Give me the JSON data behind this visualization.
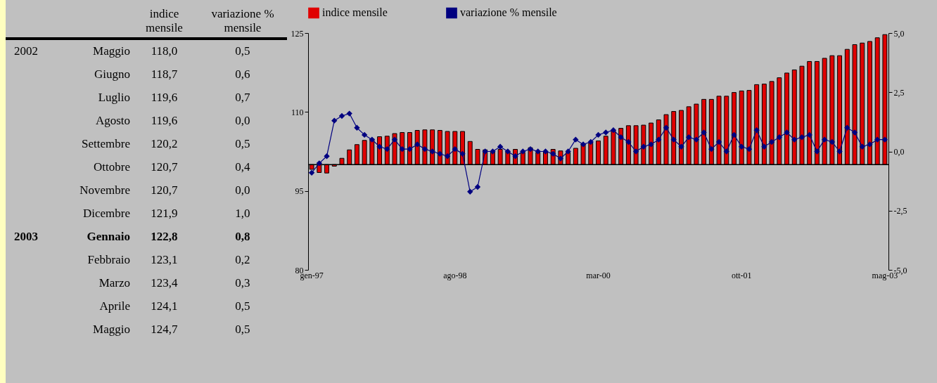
{
  "chart_data": [
    {
      "type": "other",
      "categories": [
        "Maggio",
        "Giugno",
        "Luglio",
        "Agosto",
        "Settembre",
        "Ottobre",
        "Novembre",
        "Dicembre",
        "Gennaio",
        "Febbraio",
        "Marzo",
        "Aprile",
        "Maggio"
      ],
      "series": [
        {
          "name": "indice mensile",
          "values": [
            118.0,
            118.7,
            119.6,
            119.6,
            120.2,
            120.7,
            120.7,
            121.9,
            122.8,
            123.1,
            123.4,
            124.1,
            124.7
          ],
          "value_labels": [
            "118,0",
            "118,7",
            "119,6",
            "119,6",
            "120,2",
            "120,7",
            "120,7",
            "121,9",
            "122,8",
            "123,1",
            "123,4",
            "124,1",
            "124,7"
          ]
        },
        {
          "name": "variazione % mensile",
          "values": [
            0.5,
            0.6,
            0.7,
            0.0,
            0.5,
            0.4,
            0.0,
            1.0,
            0.8,
            0.2,
            0.3,
            0.5,
            0.5
          ],
          "value_labels": [
            "0,5",
            "0,6",
            "0,7",
            "0,0",
            "0,5",
            "0,4",
            "0,0",
            "1,0",
            "0,8",
            "0,2",
            "0,3",
            "0,5",
            "0,5"
          ]
        }
      ],
      "annotations": [
        {
          "text": "2002",
          "y": "Maggio"
        },
        {
          "text": "2003",
          "y": "Gennaio"
        }
      ]
    },
    {
      "type": "bar",
      "categories": [
        "gen-97",
        null,
        null,
        null,
        null,
        null,
        null,
        null,
        null,
        null,
        null,
        null,
        null,
        null,
        null,
        null,
        null,
        null,
        null,
        "ago-98",
        null,
        null,
        null,
        null,
        null,
        null,
        null,
        null,
        null,
        null,
        null,
        null,
        null,
        null,
        null,
        null,
        null,
        null,
        "mar-00",
        null,
        null,
        null,
        null,
        null,
        null,
        null,
        null,
        null,
        null,
        null,
        null,
        null,
        null,
        null,
        null,
        null,
        null,
        "ott-01",
        null,
        null,
        null,
        null,
        null,
        null,
        null,
        null,
        null,
        null,
        null,
        null,
        null,
        null,
        null,
        null,
        null,
        null,
        "mag-03"
      ],
      "series": [
        {
          "name": "indice mensile",
          "type": "bar",
          "color": "#e00000",
          "values": [
            -0.9,
            -1.5,
            -1.6,
            -0.3,
            1.2,
            2.8,
            3.8,
            4.6,
            4.9,
            5.3,
            5.4,
            5.9,
            6.1,
            6.1,
            6.5,
            6.6,
            6.6,
            6.5,
            6.3,
            6.3,
            6.3,
            4.4,
            2.9,
            2.8,
            2.5,
            2.9,
            2.5,
            2.9,
            2.3,
            3.2,
            2.3,
            2.5,
            2.9,
            2.6,
            2.3,
            3.1,
            3.8,
            4.1,
            4.5,
            5.4,
            6.5,
            6.9,
            7.4,
            7.4,
            7.5,
            7.9,
            8.5,
            9.5,
            10.1,
            10.3,
            11.0,
            11.5,
            12.4,
            12.4,
            13.0,
            13.0,
            13.7,
            14.0,
            14.1,
            15.2,
            15.3,
            15.8,
            16.5,
            17.4,
            18.0,
            18.7,
            19.6,
            19.6,
            20.2,
            20.7,
            20.7,
            21.9,
            22.8,
            23.1,
            23.4,
            24.1,
            24.7
          ],
          "base": [
            100,
            100,
            100,
            100,
            100,
            100,
            100,
            100,
            100,
            100,
            100,
            100,
            100,
            100,
            100,
            100,
            100,
            100,
            100,
            100,
            100,
            100,
            100,
            100,
            100,
            100,
            100,
            100,
            100,
            100,
            100,
            100,
            100,
            100,
            100,
            100,
            100,
            100,
            100,
            100,
            100,
            100,
            100,
            100,
            100,
            100,
            100,
            100,
            100,
            100,
            100,
            100,
            100,
            100,
            100,
            100,
            100,
            100,
            100,
            100,
            100,
            100,
            100,
            100,
            100,
            100,
            100,
            100,
            100,
            100,
            100,
            100,
            100,
            100,
            100,
            100,
            100
          ]
        },
        {
          "name": "variazione % mensile",
          "type": "line",
          "axis": "y2",
          "color": "#000080",
          "values": [
            -0.9,
            -0.5,
            -0.2,
            1.3,
            1.5,
            1.6,
            1.0,
            0.7,
            0.5,
            0.2,
            0.1,
            0.5,
            0.1,
            0.1,
            0.3,
            0.1,
            0.0,
            -0.1,
            -0.2,
            0.1,
            -0.1,
            -1.7,
            -1.5,
            0.0,
            0.0,
            0.2,
            0.0,
            -0.2,
            0.0,
            0.1,
            0.0,
            0.0,
            -0.1,
            -0.3,
            0.0,
            0.5,
            0.3,
            0.4,
            0.7,
            0.8,
            0.9,
            0.6,
            0.4,
            0.0,
            0.2,
            0.3,
            0.5,
            1.0,
            0.5,
            0.2,
            0.6,
            0.5,
            0.8,
            0.1,
            0.4,
            0.0,
            0.7,
            0.2,
            0.1,
            0.9,
            0.2,
            0.4,
            0.6,
            0.8,
            0.5,
            0.6,
            0.7,
            0.0,
            0.5,
            0.4,
            0.0,
            1.0,
            0.8,
            0.2,
            0.3,
            0.5,
            0.5
          ]
        }
      ],
      "ylim": [
        80,
        125
      ],
      "yticks": [
        80,
        95,
        110,
        125
      ],
      "y2lim": [
        -5,
        5
      ],
      "y2ticks": [
        {
          "value": -5,
          "label": "-5,0"
        },
        {
          "value": -2.5,
          "label": "-2,5"
        },
        {
          "value": 0,
          "label": "0,0"
        },
        {
          "value": 2.5,
          "label": "2,5"
        },
        {
          "value": 5,
          "label": "5,0"
        }
      ],
      "ref_lines": [
        {
          "axis": "y",
          "value": 100
        }
      ],
      "marker": "diamond",
      "legend": "top",
      "grid": false
    }
  ]
}
